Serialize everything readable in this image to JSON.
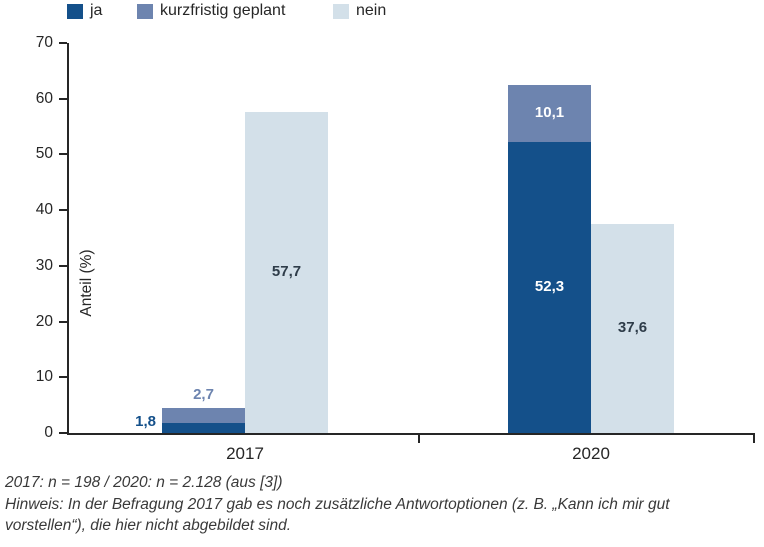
{
  "legend": {
    "items": [
      {
        "label": "ja",
        "color": "#14508a"
      },
      {
        "label": "kurzfristig geplant",
        "color": "#6d84af"
      },
      {
        "label": "nein",
        "color": "#d3e0e9"
      }
    ]
  },
  "chart_data": {
    "type": "bar",
    "title": "",
    "categories": [
      "2017",
      "2020"
    ],
    "series": [
      {
        "name": "ja",
        "color": "#14508a",
        "values": [
          1.8,
          52.3
        ],
        "labels": [
          "1,8",
          "52,3"
        ]
      },
      {
        "name": "kurzfristig geplant",
        "color": "#6d84af",
        "values": [
          2.7,
          10.1
        ],
        "labels": [
          "2,7",
          "10,1"
        ]
      },
      {
        "name": "nein",
        "color": "#d3e0e9",
        "values": [
          57.7,
          37.6
        ],
        "labels": [
          "57,7",
          "37,6"
        ]
      }
    ],
    "bar_arrangement": "per category: 'ja' and 'kurzfristig geplant' stacked in left bar, 'nein' as adjacent separate bar",
    "xlabel": "",
    "ylabel": "Anteil (%)",
    "ylim": [
      0,
      70
    ],
    "yticks": [
      0,
      10,
      20,
      30,
      40,
      50,
      60,
      70
    ],
    "grid": false,
    "legend_position": "top",
    "value_label_dark_color": "#2e3c49",
    "value_label_light_color": "#ffffff",
    "axis_color": "#262626"
  },
  "footer": {
    "lines": [
      "2017: n = 198 / 2020: n = 2.128 (aus [3])",
      "Hinweis: In der Befragung 2017 gab es noch zusätzliche Antwortoptionen (z. B. „Kann ich mir gut",
      "vorstellen“), die hier nicht abgebildet sind."
    ]
  }
}
